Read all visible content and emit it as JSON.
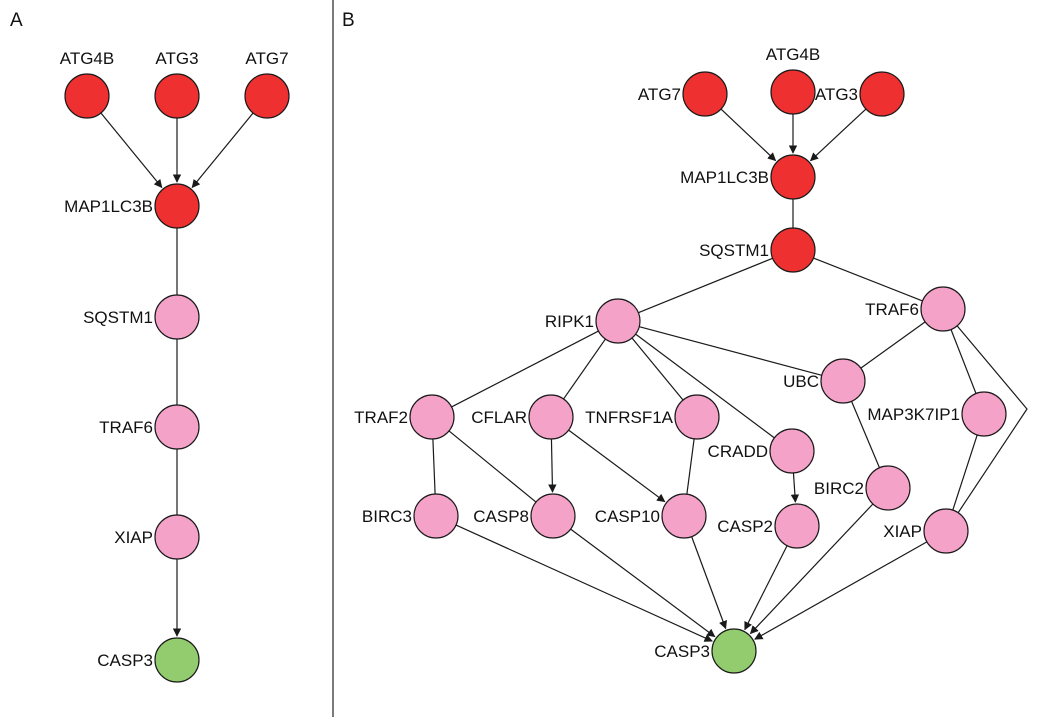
{
  "panels": [
    {
      "id": "A",
      "label": "A",
      "nodes": [
        {
          "id": "ATG4B",
          "label": "ATG4B",
          "color": "#ee3030"
        },
        {
          "id": "ATG3",
          "label": "ATG3",
          "color": "#ee3030"
        },
        {
          "id": "ATG7",
          "label": "ATG7",
          "color": "#ee3030"
        },
        {
          "id": "MAP1LC3B",
          "label": "MAP1LC3B",
          "color": "#ee3030"
        },
        {
          "id": "SQSTM1",
          "label": "SQSTM1",
          "color": "#f4a2c8"
        },
        {
          "id": "TRAF6",
          "label": "TRAF6",
          "color": "#f4a2c8"
        },
        {
          "id": "XIAP",
          "label": "XIAP",
          "color": "#f4a2c8"
        },
        {
          "id": "CASP3",
          "label": "CASP3",
          "color": "#92cc6e"
        }
      ],
      "edges": [
        {
          "source": "ATG4B",
          "target": "MAP1LC3B",
          "directed": true
        },
        {
          "source": "ATG3",
          "target": "MAP1LC3B",
          "directed": true
        },
        {
          "source": "ATG7",
          "target": "MAP1LC3B",
          "directed": true
        },
        {
          "source": "MAP1LC3B",
          "target": "SQSTM1",
          "directed": false
        },
        {
          "source": "SQSTM1",
          "target": "TRAF6",
          "directed": false
        },
        {
          "source": "TRAF6",
          "target": "XIAP",
          "directed": false
        },
        {
          "source": "XIAP",
          "target": "CASP3",
          "directed": true
        }
      ]
    },
    {
      "id": "B",
      "label": "B",
      "nodes": [
        {
          "id": "ATG7",
          "label": "ATG7",
          "color": "#ee3030"
        },
        {
          "id": "ATG4B",
          "label": "ATG4B",
          "color": "#ee3030"
        },
        {
          "id": "ATG3",
          "label": "ATG3",
          "color": "#ee3030"
        },
        {
          "id": "MAP1LC3B",
          "label": "MAP1LC3B",
          "color": "#ee3030"
        },
        {
          "id": "SQSTM1",
          "label": "SQSTM1",
          "color": "#ee3030"
        },
        {
          "id": "RIPK1",
          "label": "RIPK1",
          "color": "#f4a2c8"
        },
        {
          "id": "TRAF6",
          "label": "TRAF6",
          "color": "#f4a2c8"
        },
        {
          "id": "UBC",
          "label": "UBC",
          "color": "#f4a2c8"
        },
        {
          "id": "TRAF2",
          "label": "TRAF2",
          "color": "#f4a2c8"
        },
        {
          "id": "CFLAR",
          "label": "CFLAR",
          "color": "#f4a2c8"
        },
        {
          "id": "TNFRSF1A",
          "label": "TNFRSF1A",
          "color": "#f4a2c8"
        },
        {
          "id": "CRADD",
          "label": "CRADD",
          "color": "#f4a2c8"
        },
        {
          "id": "MAP3K7IP1",
          "label": "MAP3K7IP1",
          "color": "#f4a2c8"
        },
        {
          "id": "BIRC2",
          "label": "BIRC2",
          "color": "#f4a2c8"
        },
        {
          "id": "BIRC3",
          "label": "BIRC3",
          "color": "#f4a2c8"
        },
        {
          "id": "CASP8",
          "label": "CASP8",
          "color": "#f4a2c8"
        },
        {
          "id": "CASP10",
          "label": "CASP10",
          "color": "#f4a2c8"
        },
        {
          "id": "CASP2",
          "label": "CASP2",
          "color": "#f4a2c8"
        },
        {
          "id": "XIAP",
          "label": "XIAP",
          "color": "#f4a2c8"
        },
        {
          "id": "CASP3",
          "label": "CASP3",
          "color": "#92cc6e"
        }
      ],
      "edges": [
        {
          "source": "ATG7",
          "target": "MAP1LC3B",
          "directed": true
        },
        {
          "source": "ATG4B",
          "target": "MAP1LC3B",
          "directed": true
        },
        {
          "source": "ATG3",
          "target": "MAP1LC3B",
          "directed": true
        },
        {
          "source": "MAP1LC3B",
          "target": "SQSTM1",
          "directed": false
        },
        {
          "source": "SQSTM1",
          "target": "RIPK1",
          "directed": false
        },
        {
          "source": "SQSTM1",
          "target": "TRAF6",
          "directed": false
        },
        {
          "source": "RIPK1",
          "target": "TRAF2",
          "directed": false
        },
        {
          "source": "RIPK1",
          "target": "CFLAR",
          "directed": false
        },
        {
          "source": "RIPK1",
          "target": "TNFRSF1A",
          "directed": false
        },
        {
          "source": "RIPK1",
          "target": "CRADD",
          "directed": false
        },
        {
          "source": "RIPK1",
          "target": "UBC",
          "directed": false
        },
        {
          "source": "TRAF6",
          "target": "UBC",
          "directed": false
        },
        {
          "source": "TRAF6",
          "target": "MAP3K7IP1",
          "directed": false
        },
        {
          "source": "TRAF6",
          "target": "XIAP",
          "directed": false,
          "bend": "right"
        },
        {
          "source": "TRAF2",
          "target": "BIRC3",
          "directed": false
        },
        {
          "source": "TRAF2",
          "target": "CASP8",
          "directed": false
        },
        {
          "source": "CFLAR",
          "target": "CASP8",
          "directed": true
        },
        {
          "source": "CFLAR",
          "target": "CASP10",
          "directed": true
        },
        {
          "source": "TNFRSF1A",
          "target": "CASP10",
          "directed": false
        },
        {
          "source": "CRADD",
          "target": "CASP2",
          "directed": true
        },
        {
          "source": "UBC",
          "target": "BIRC2",
          "directed": false
        },
        {
          "source": "MAP3K7IP1",
          "target": "XIAP",
          "directed": false
        },
        {
          "source": "BIRC3",
          "target": "CASP3",
          "directed": true
        },
        {
          "source": "CASP8",
          "target": "CASP3",
          "directed": true
        },
        {
          "source": "CASP10",
          "target": "CASP3",
          "directed": true
        },
        {
          "source": "CASP2",
          "target": "CASP3",
          "directed": true
        },
        {
          "source": "BIRC2",
          "target": "CASP3",
          "directed": true
        },
        {
          "source": "XIAP",
          "target": "CASP3",
          "directed": true
        }
      ]
    }
  ]
}
